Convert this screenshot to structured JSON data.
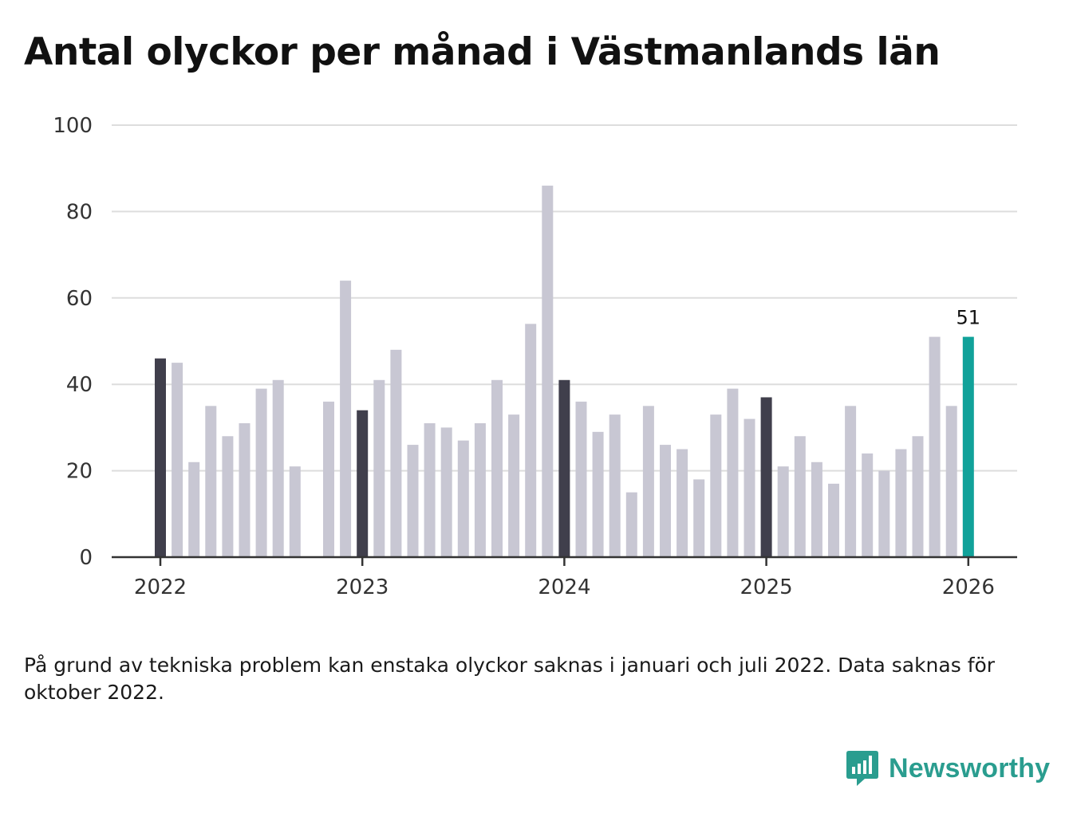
{
  "title": "Antal olyckor per månad i Västmanlands län",
  "note": "På grund av tekniska problem kan enstaka olyckor saknas i januari och juli 2022. Data saknas för oktober 2022.",
  "brand": {
    "name": "Newsworthy",
    "icon": "newsworthy-logo-icon"
  },
  "colors": {
    "bar": "#c8c7d3",
    "january": "#403f4c",
    "latest": "#11a29a",
    "grid": "#dddddd",
    "axis": "#333333",
    "brand": "#2a9d8f"
  },
  "chart_data": {
    "type": "bar",
    "title": "Antal olyckor per månad i Västmanlands län",
    "xlabel": "",
    "ylabel": "",
    "ylim": [
      0,
      100
    ],
    "yticks": [
      "0",
      "20",
      "40",
      "60",
      "80",
      "100"
    ],
    "xtick_labels": [
      "2022",
      "2023",
      "2024",
      "2025",
      "2026"
    ],
    "grid": true,
    "series": [
      {
        "name": "Antal olyckor",
        "start": "2022-01",
        "values": [
          46,
          45,
          22,
          35,
          28,
          31,
          39,
          41,
          21,
          null,
          36,
          64,
          34,
          41,
          48,
          26,
          31,
          30,
          27,
          31,
          41,
          33,
          54,
          86,
          41,
          36,
          29,
          33,
          15,
          35,
          26,
          25,
          18,
          33,
          39,
          32,
          37,
          21,
          28,
          22,
          17,
          35,
          24,
          20,
          25,
          28,
          51,
          35,
          51
        ]
      }
    ],
    "highlight": {
      "label": "51",
      "month": "2026-01"
    }
  }
}
